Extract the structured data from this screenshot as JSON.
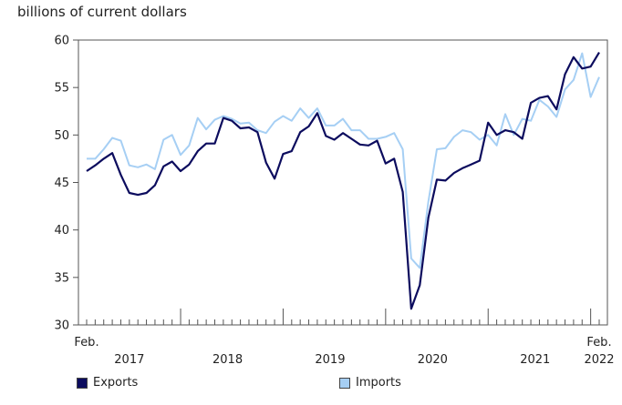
{
  "chart_data": {
    "type": "line",
    "ylabel": "billions of current dollars",
    "ylim": [
      30,
      60
    ],
    "yticks": [
      30,
      35,
      40,
      45,
      50,
      55,
      60
    ],
    "x_start_label": "Feb.",
    "x_end_label": "Feb.",
    "year_labels": [
      "2017",
      "2018",
      "2019",
      "2020",
      "2021",
      "2022"
    ],
    "x": [
      "2017-02",
      "2017-03",
      "2017-04",
      "2017-05",
      "2017-06",
      "2017-07",
      "2017-08",
      "2017-09",
      "2017-10",
      "2017-11",
      "2017-12",
      "2018-01",
      "2018-02",
      "2018-03",
      "2018-04",
      "2018-05",
      "2018-06",
      "2018-07",
      "2018-08",
      "2018-09",
      "2018-10",
      "2018-11",
      "2018-12",
      "2019-01",
      "2019-02",
      "2019-03",
      "2019-04",
      "2019-05",
      "2019-06",
      "2019-07",
      "2019-08",
      "2019-09",
      "2019-10",
      "2019-11",
      "2019-12",
      "2020-01",
      "2020-02",
      "2020-03",
      "2020-04",
      "2020-05",
      "2020-06",
      "2020-07",
      "2020-08",
      "2020-09",
      "2020-10",
      "2020-11",
      "2020-12",
      "2021-01",
      "2021-02",
      "2021-03",
      "2021-04",
      "2021-05",
      "2021-06",
      "2021-07",
      "2021-08",
      "2021-09",
      "2021-10",
      "2021-11",
      "2021-12",
      "2022-01",
      "2022-02"
    ],
    "series": [
      {
        "name": "Exports",
        "color": "#0c0c5e",
        "values": [
          46.2,
          46.8,
          47.5,
          48.1,
          45.8,
          43.9,
          43.7,
          43.9,
          44.7,
          46.7,
          47.2,
          46.2,
          46.9,
          48.3,
          49.1,
          49.1,
          51.8,
          51.5,
          50.7,
          50.8,
          50.3,
          47.1,
          45.4,
          48.0,
          48.3,
          50.3,
          50.9,
          52.3,
          49.9,
          49.5,
          50.2,
          49.6,
          49.0,
          48.9,
          49.4,
          47.0,
          47.5,
          44.0,
          31.7,
          34.2,
          41.3,
          45.3,
          45.2,
          46.0,
          46.5,
          46.9,
          47.3,
          51.3,
          50.0,
          50.5,
          50.3,
          49.6,
          53.4,
          53.9,
          54.1,
          52.7,
          56.4,
          58.2,
          57.0,
          57.2,
          58.7
        ]
      },
      {
        "name": "Imports",
        "color": "#a6cff4",
        "values": [
          47.5,
          47.5,
          48.5,
          49.7,
          49.4,
          46.8,
          46.6,
          46.9,
          46.4,
          49.5,
          50.0,
          47.9,
          48.9,
          51.8,
          50.6,
          51.6,
          52.0,
          51.7,
          51.2,
          51.3,
          50.5,
          50.2,
          51.4,
          52.0,
          51.5,
          52.8,
          51.8,
          52.8,
          51.0,
          51.0,
          51.7,
          50.5,
          50.5,
          49.6,
          49.6,
          49.8,
          50.2,
          48.5,
          37.0,
          36.0,
          43.0,
          48.5,
          48.6,
          49.8,
          50.5,
          50.3,
          49.5,
          50.0,
          48.9,
          52.2,
          50.0,
          51.7,
          51.5,
          53.7,
          53.0,
          51.9,
          54.8,
          55.8,
          58.6,
          54.0,
          56.1
        ]
      }
    ]
  }
}
